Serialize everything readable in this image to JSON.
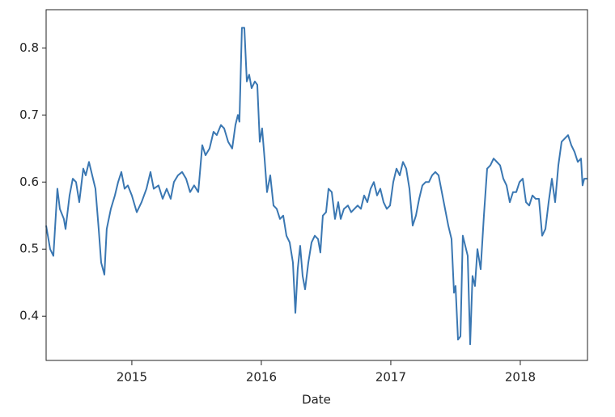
{
  "chart_data": {
    "type": "line",
    "x_label": "Date",
    "color": "#3a77b2",
    "x": [
      2014.338,
      2014.369,
      2014.394,
      2014.425,
      2014.444,
      2014.475,
      2014.488,
      2014.519,
      2014.544,
      2014.569,
      2014.594,
      2014.625,
      2014.644,
      2014.669,
      2014.694,
      2014.719,
      2014.744,
      2014.763,
      2014.788,
      2014.806,
      2014.838,
      2014.869,
      2014.894,
      2014.919,
      2014.944,
      2014.969,
      2015.0,
      2015.038,
      2015.075,
      2015.113,
      2015.144,
      2015.169,
      2015.206,
      2015.238,
      2015.269,
      2015.3,
      2015.325,
      2015.356,
      2015.388,
      2015.419,
      2015.45,
      2015.481,
      2015.513,
      2015.544,
      2015.569,
      2015.6,
      2015.631,
      2015.656,
      2015.688,
      2015.713,
      2015.744,
      2015.775,
      2015.8,
      2015.819,
      2015.831,
      2015.85,
      2015.869,
      2015.888,
      2015.906,
      2015.925,
      2015.95,
      2015.969,
      2015.988,
      2016.006,
      2016.025,
      2016.044,
      2016.069,
      2016.094,
      2016.119,
      2016.144,
      2016.169,
      2016.194,
      2016.219,
      2016.244,
      2016.263,
      2016.281,
      2016.3,
      2016.319,
      2016.338,
      2016.363,
      2016.388,
      2016.413,
      2016.438,
      2016.456,
      2016.475,
      2016.5,
      2016.519,
      2016.544,
      2016.569,
      2016.594,
      2016.613,
      2016.638,
      2016.669,
      2016.694,
      2016.719,
      2016.744,
      2016.769,
      2016.794,
      2016.819,
      2016.844,
      2016.869,
      2016.894,
      2016.919,
      2016.944,
      2016.969,
      2016.994,
      2017.019,
      2017.044,
      2017.069,
      2017.094,
      2017.119,
      2017.144,
      2017.169,
      2017.194,
      2017.219,
      2017.244,
      2017.269,
      2017.294,
      2017.319,
      2017.344,
      2017.369,
      2017.394,
      2017.419,
      2017.444,
      2017.469,
      2017.488,
      2017.5,
      2017.519,
      2017.538,
      2017.556,
      2017.575,
      2017.594,
      2017.613,
      2017.631,
      2017.65,
      2017.669,
      2017.694,
      2017.719,
      2017.744,
      2017.769,
      2017.794,
      2017.819,
      2017.844,
      2017.869,
      2017.894,
      2017.919,
      2017.944,
      2017.969,
      2017.994,
      2018.019,
      2018.044,
      2018.069,
      2018.094,
      2018.119,
      2018.144,
      2018.169,
      2018.194,
      2018.219,
      2018.244,
      2018.269,
      2018.294,
      2018.319,
      2018.344,
      2018.369,
      2018.394,
      2018.419,
      2018.444,
      2018.469,
      2018.481,
      2018.494,
      2018.519
    ],
    "values": [
      0.535,
      0.5,
      0.49,
      0.59,
      0.56,
      0.545,
      0.53,
      0.58,
      0.605,
      0.6,
      0.57,
      0.62,
      0.61,
      0.63,
      0.61,
      0.59,
      0.53,
      0.48,
      0.462,
      0.53,
      0.56,
      0.58,
      0.6,
      0.615,
      0.59,
      0.595,
      0.58,
      0.555,
      0.57,
      0.59,
      0.615,
      0.59,
      0.595,
      0.575,
      0.59,
      0.575,
      0.6,
      0.61,
      0.615,
      0.605,
      0.585,
      0.595,
      0.585,
      0.655,
      0.64,
      0.65,
      0.675,
      0.67,
      0.685,
      0.68,
      0.66,
      0.65,
      0.685,
      0.7,
      0.69,
      0.83,
      0.83,
      0.75,
      0.76,
      0.74,
      0.75,
      0.745,
      0.66,
      0.68,
      0.635,
      0.585,
      0.61,
      0.565,
      0.56,
      0.545,
      0.55,
      0.52,
      0.51,
      0.48,
      0.405,
      0.47,
      0.505,
      0.46,
      0.44,
      0.48,
      0.51,
      0.52,
      0.515,
      0.495,
      0.55,
      0.555,
      0.59,
      0.585,
      0.545,
      0.57,
      0.545,
      0.56,
      0.565,
      0.555,
      0.56,
      0.565,
      0.56,
      0.58,
      0.57,
      0.59,
      0.6,
      0.58,
      0.59,
      0.57,
      0.56,
      0.565,
      0.6,
      0.62,
      0.61,
      0.63,
      0.62,
      0.59,
      0.535,
      0.55,
      0.575,
      0.595,
      0.6,
      0.6,
      0.61,
      0.615,
      0.61,
      0.585,
      0.56,
      0.535,
      0.515,
      0.435,
      0.445,
      0.365,
      0.37,
      0.52,
      0.505,
      0.49,
      0.358,
      0.46,
      0.445,
      0.5,
      0.47,
      0.55,
      0.62,
      0.625,
      0.635,
      0.63,
      0.625,
      0.605,
      0.595,
      0.57,
      0.585,
      0.585,
      0.6,
      0.605,
      0.57,
      0.565,
      0.58,
      0.575,
      0.575,
      0.52,
      0.53,
      0.57,
      0.605,
      0.57,
      0.625,
      0.66,
      0.665,
      0.67,
      0.655,
      0.645,
      0.63,
      0.635,
      0.595,
      0.605,
      0.605
    ],
    "xlim": [
      2014.338,
      2018.519
    ],
    "xticks": [
      2015,
      2016,
      2017,
      2018
    ],
    "ylim": [
      0.334,
      0.857
    ],
    "yticks": [
      0.4,
      0.5,
      0.6,
      0.7,
      0.8
    ]
  }
}
